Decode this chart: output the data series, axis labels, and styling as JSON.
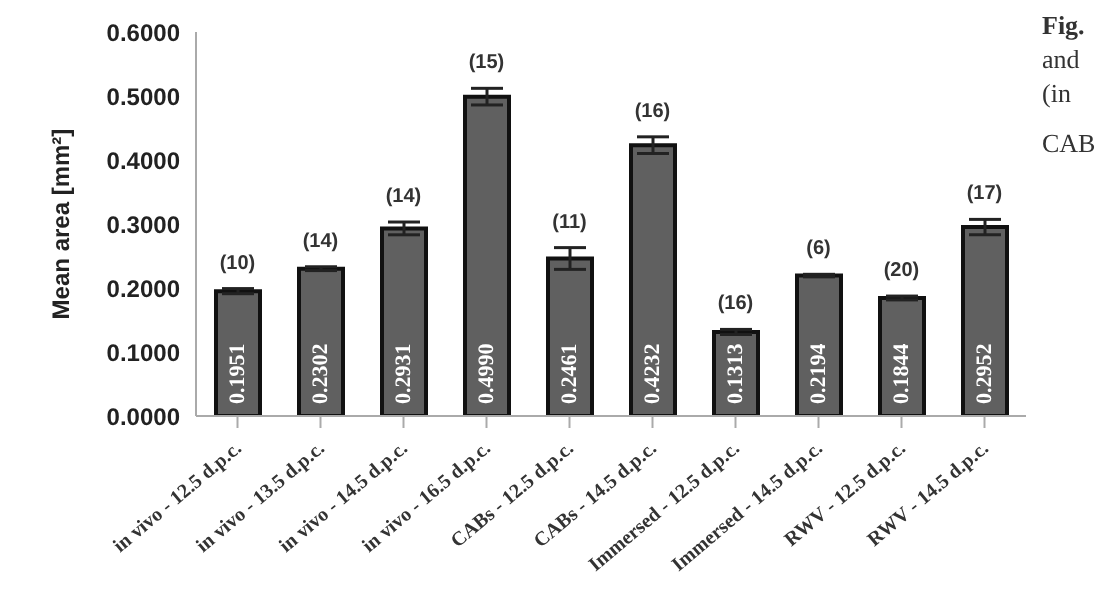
{
  "chart_data": {
    "type": "bar",
    "ylabel": "Mean area [mm²]",
    "categories": [
      "in vivo - 12.5 d.p.c.",
      "in vivo - 13.5 d.p.c.",
      "in vivo - 14.5 d.p.c.",
      "in vivo - 16.5 d.p.c.",
      "CABs - 12.5 d.p.c.",
      "CABs - 14.5 d.p.c.",
      "Immersed - 12.5 d.p.c.",
      "Immersed - 14.5 d.p.c.",
      "RWV - 12.5 d.p.c.",
      "RWV - 14.5 d.p.c."
    ],
    "values": [
      0.1951,
      0.2302,
      0.2931,
      0.499,
      0.2461,
      0.4232,
      0.1313,
      0.2194,
      0.1844,
      0.2952
    ],
    "errors": [
      0.004,
      0.003,
      0.01,
      0.013,
      0.017,
      0.013,
      0.004,
      0.002,
      0.003,
      0.012
    ],
    "color": "#606060",
    "grid": false,
    "value_labels": [
      "0.1951",
      "0.2302",
      "0.2931",
      "0.4990",
      "0.2461",
      "0.4232",
      "0.1313",
      "0.2194",
      "0.1844",
      "0.2952"
    ],
    "ylim": [
      0,
      0.6
    ],
    "yticks": [
      {
        "value": 0,
        "label": "0.0000"
      },
      {
        "value": 0.1,
        "label": "0.1000"
      },
      {
        "value": 0.2,
        "label": "0.2000"
      },
      {
        "value": 0.3,
        "label": "0.3000"
      },
      {
        "value": 0.4,
        "label": "0.4000"
      },
      {
        "value": 0.5,
        "label": "0.5000"
      },
      {
        "value": 0.6,
        "label": "0.6000"
      }
    ],
    "annotations": [
      {
        "text": "(10)",
        "x": "in vivo - 12.5 d.p.c.",
        "y": 0.1951
      },
      {
        "text": "(14)",
        "x": "in vivo - 13.5 d.p.c.",
        "y": 0.2302
      },
      {
        "text": "(14)",
        "x": "in vivo - 14.5 d.p.c.",
        "y": 0.2931
      },
      {
        "text": "(15)",
        "x": "in vivo - 16.5 d.p.c.",
        "y": 0.499
      },
      {
        "text": "(11)",
        "x": "CABs - 12.5 d.p.c.",
        "y": 0.2461
      },
      {
        "text": "(16)",
        "x": "CABs - 14.5 d.p.c.",
        "y": 0.4232
      },
      {
        "text": "(16)",
        "x": "Immersed - 12.5 d.p.c.",
        "y": 0.1313
      },
      {
        "text": "(6)",
        "x": "Immersed - 14.5 d.p.c.",
        "y": 0.2194
      },
      {
        "text": "(20)",
        "x": "RWV - 12.5 d.p.c.",
        "y": 0.1844
      },
      {
        "text": "(17)",
        "x": "RWV - 14.5 d.p.c.",
        "y": 0.2952
      },
      "Fig.",
      "and",
      "(in",
      "CAB"
    ]
  }
}
